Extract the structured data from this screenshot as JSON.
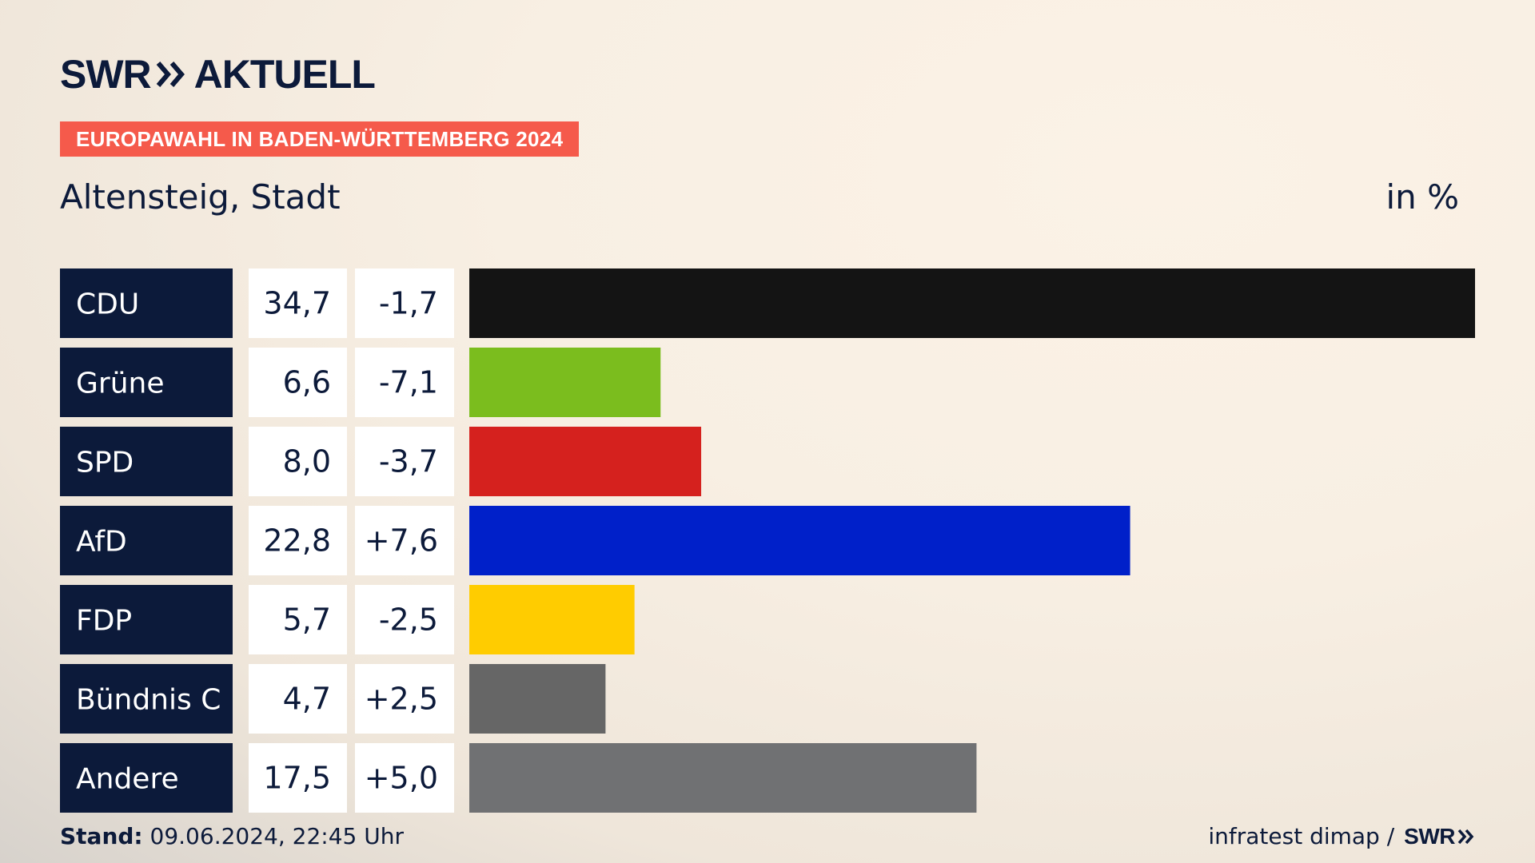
{
  "brand": {
    "name": "SWR",
    "suffix": "AKTUELL",
    "chevron_icon": "double-chevron-right-icon"
  },
  "banner": {
    "text": "EUROPAWAHL IN BADEN-WÜRTTEMBERG 2024",
    "color": "#f55a4b"
  },
  "header": {
    "region": "Altensteig, Stadt",
    "unit": "in %"
  },
  "footer": {
    "stand_label": "Stand:",
    "stand_value": "09.06.2024, 22:45 Uhr",
    "source": "infratest dimap /",
    "source_brand": "SWR"
  },
  "chart_data": {
    "type": "bar",
    "orientation": "horizontal",
    "title": "Europawahl in Baden-Württemberg 2024 – Altensteig, Stadt",
    "unit": "in %",
    "categories": [
      "CDU",
      "Grüne",
      "SPD",
      "AfD",
      "FDP",
      "Bündnis C",
      "Andere"
    ],
    "values": [
      34.7,
      6.6,
      8.0,
      22.8,
      5.7,
      4.7,
      17.5
    ],
    "value_labels": [
      "34,7",
      "6,6",
      "8,0",
      "22,8",
      "5,7",
      "4,7",
      "17,5"
    ],
    "change": [
      -1.7,
      -7.1,
      -3.7,
      7.6,
      -2.5,
      2.5,
      5.0
    ],
    "change_labels": [
      "-1,7",
      "-7,1",
      "-3,7",
      "+7,6",
      "-2,5",
      "+2,5",
      "+5,0"
    ],
    "colors": [
      "#141414",
      "#7bbd1e",
      "#d5211e",
      "#0020c9",
      "#ffcc00",
      "#666666",
      "#707173"
    ],
    "xlim": [
      0,
      34.7
    ]
  }
}
